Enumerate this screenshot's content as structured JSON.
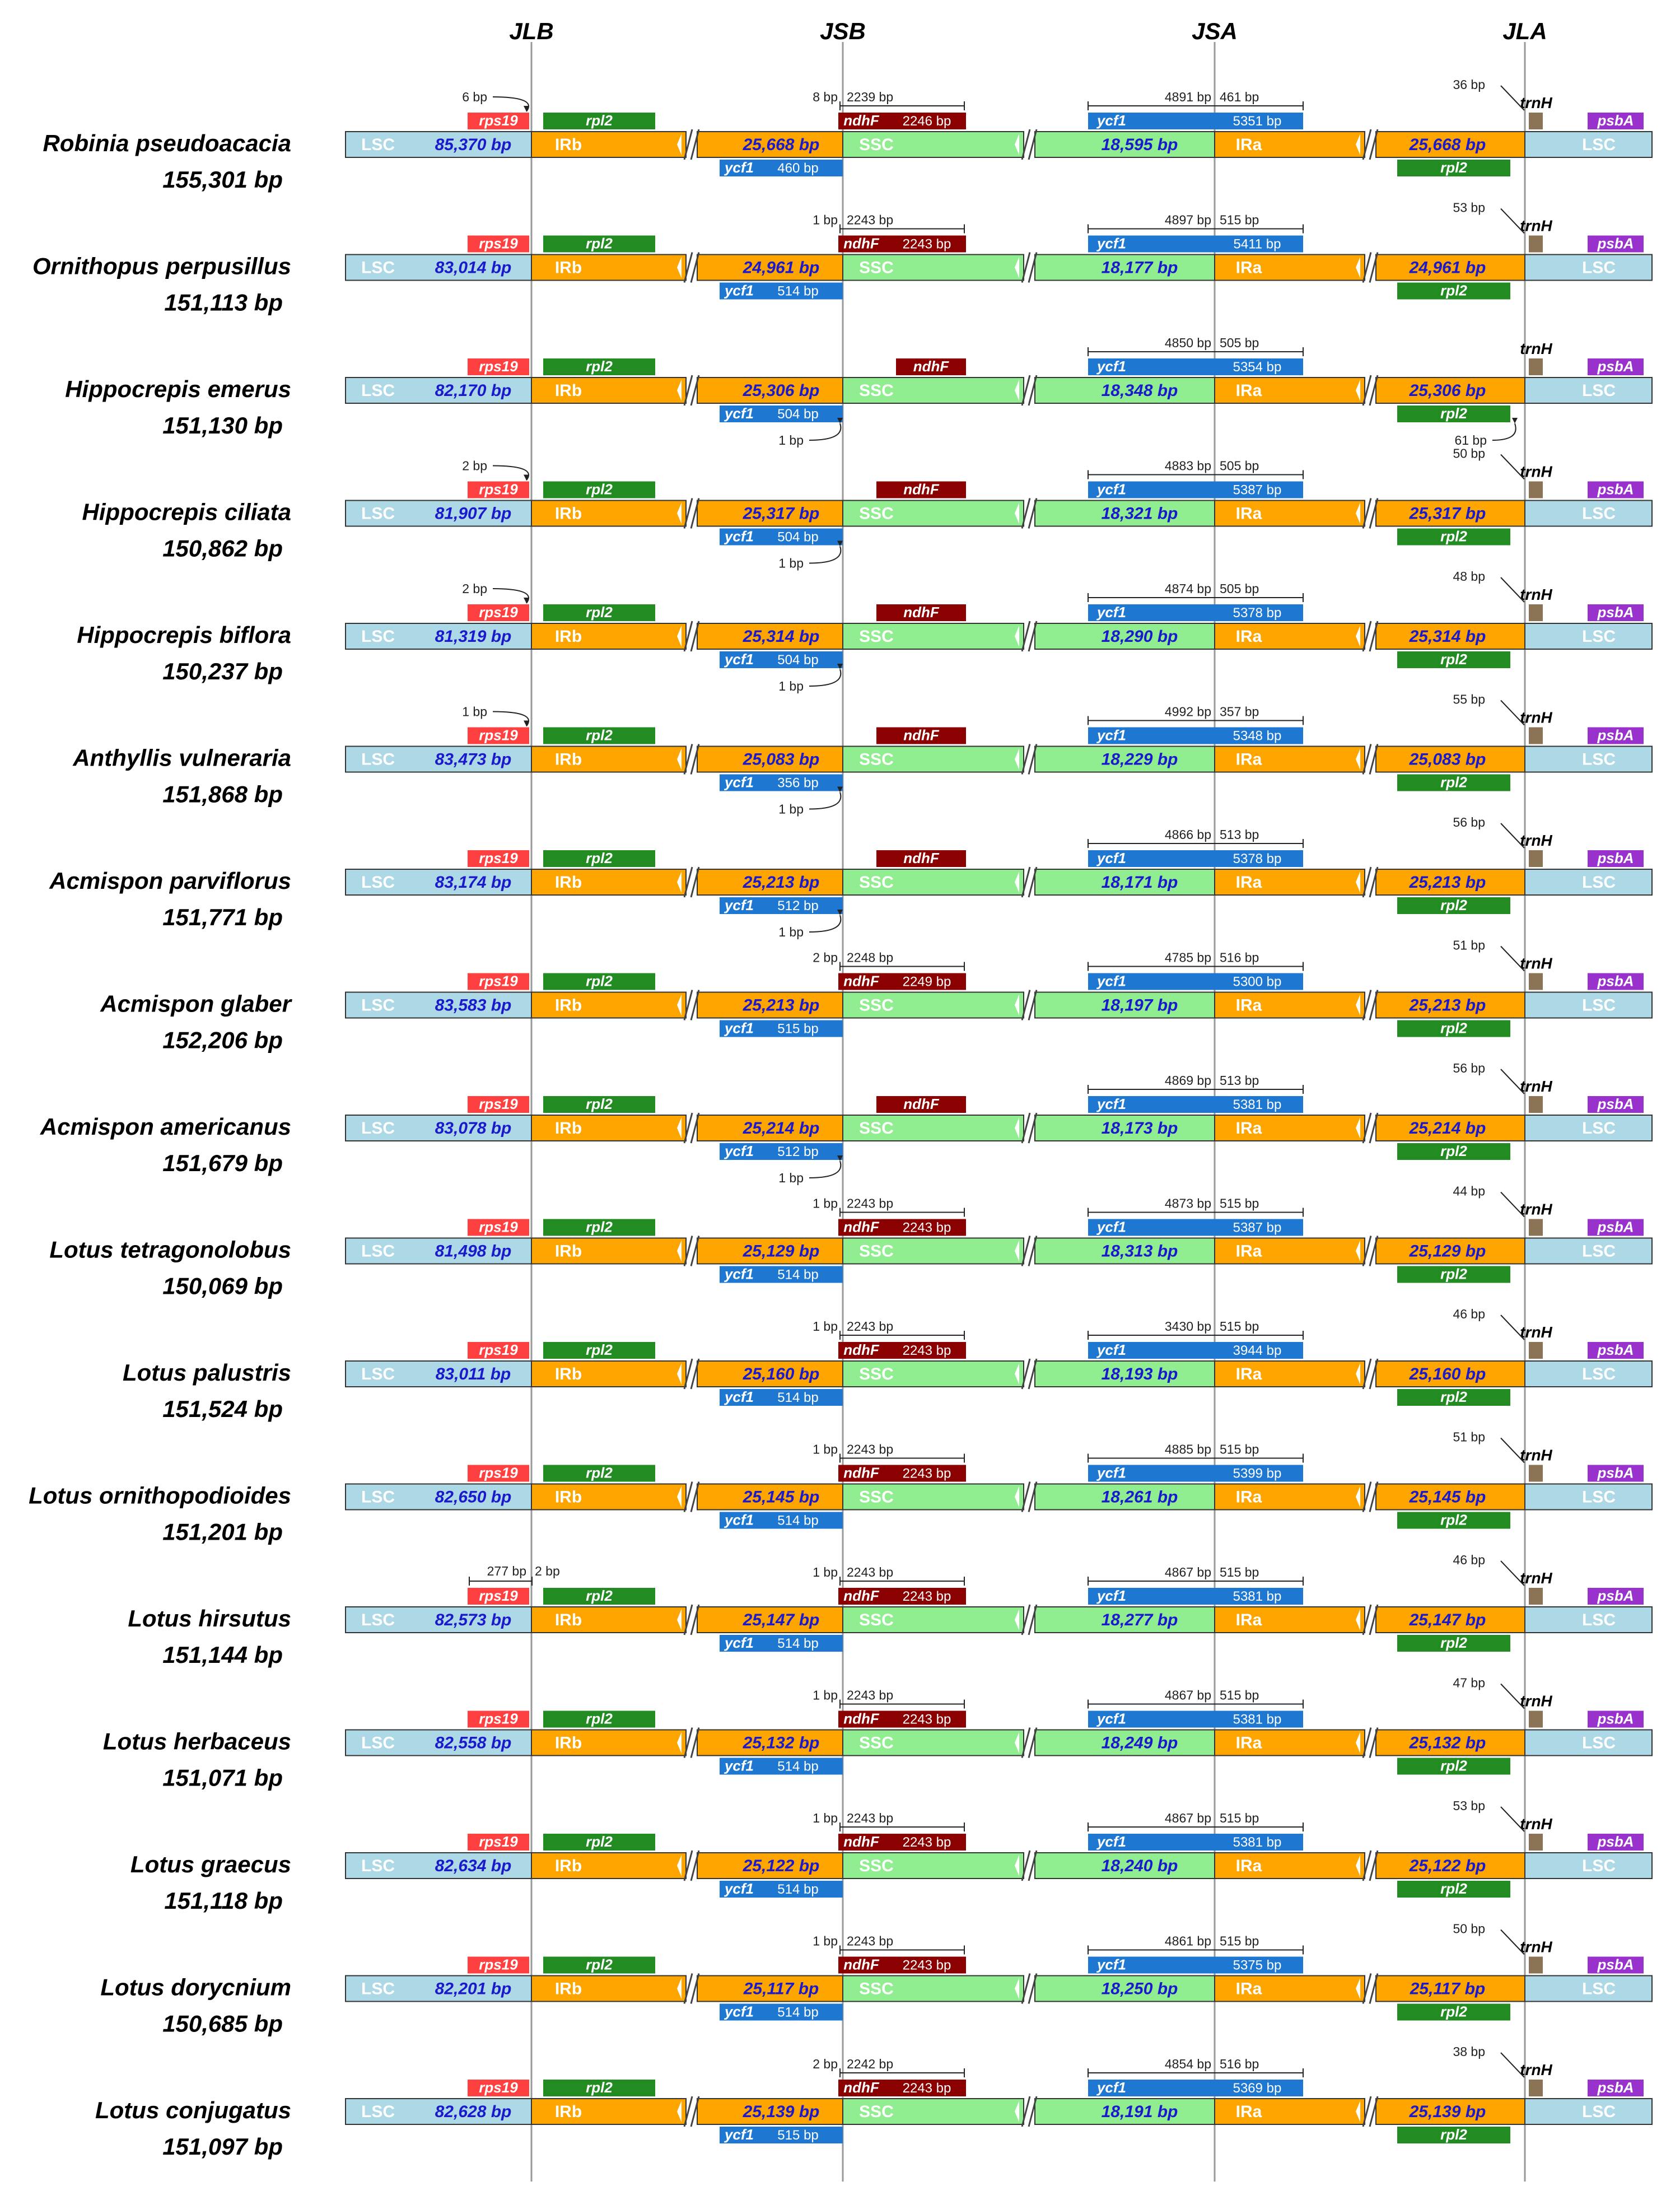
{
  "junctions": [
    "JLB",
    "JSB",
    "JSA",
    "JLA"
  ],
  "region_labels": {
    "lsc": "LSC",
    "irb": "IRb",
    "ssc": "SSC",
    "ira": "IRa"
  },
  "gene_labels": {
    "rps19": "rps19",
    "rpl2": "rpl2",
    "ndhF": "ndhF",
    "ycf1": "ycf1",
    "trnH": "trnH",
    "psbA": "psbA"
  },
  "colors": {
    "lsc": "#add8e6",
    "ir": "#ffa500",
    "ssc": "#90ee90",
    "rps19": "#ff4040",
    "rpl2": "#228b22",
    "ndhF": "#8b0000",
    "ycf1": "#1e78d2",
    "trnH": "#8b7355",
    "psbA": "#9932cc",
    "size_text": "#1a1acc",
    "junction_line": "#999999"
  },
  "species": [
    {
      "name": "Robinia pseudoacacia",
      "total": "155,301 bp",
      "lsc": "85,370 bp",
      "ir": "25,668 bp",
      "ssc": "18,595 bp",
      "rps19_ann": "6 bp",
      "rps19_span": "",
      "ndhF_left": "8 bp",
      "ndhF_right": "2239 bp",
      "ndhF_len": "2246 bp",
      "ndhF_mode": "cross",
      "ycf1_left": "4891 bp",
      "ycf1_right": "461 bp",
      "ycf1_len": "5351 bp",
      "ycf1_irb_len": "460 bp",
      "jsb_gap": "",
      "trnH_ann": "36 bp",
      "jla_gap": ""
    },
    {
      "name": "Ornithopus perpusillus",
      "total": "151,113 bp",
      "lsc": "83,014 bp",
      "ir": "24,961 bp",
      "ssc": "18,177 bp",
      "rps19_ann": "",
      "rps19_span": "",
      "ndhF_left": "1 bp",
      "ndhF_right": "2243 bp",
      "ndhF_len": "2243 bp",
      "ndhF_mode": "cross",
      "ycf1_left": "4897 bp",
      "ycf1_right": "515 bp",
      "ycf1_len": "5411 bp",
      "ycf1_irb_len": "514 bp",
      "jsb_gap": "",
      "trnH_ann": "53 bp",
      "jla_gap": ""
    },
    {
      "name": "Hippocrepis emerus",
      "total": "151,130 bp",
      "lsc": "82,170 bp",
      "ir": "25,306 bp",
      "ssc": "18,348 bp",
      "rps19_ann": "",
      "rps19_span": "",
      "ndhF_left": "",
      "ndhF_right": "",
      "ndhF_len": "",
      "ndhF_mode": "ssc",
      "ycf1_left": "4850 bp",
      "ycf1_right": "505 bp",
      "ycf1_len": "5354 bp",
      "ycf1_irb_len": "504 bp",
      "jsb_gap": "1 bp",
      "trnH_ann": "",
      "jla_gap": "61 bp"
    },
    {
      "name": "Hippocrepis ciliata",
      "total": "150,862 bp",
      "lsc": "81,907 bp",
      "ir": "25,317 bp",
      "ssc": "18,321 bp",
      "rps19_ann": "2 bp",
      "rps19_span": "",
      "ndhF_left": "",
      "ndhF_right": "",
      "ndhF_len": "",
      "ndhF_mode": "ssc",
      "ycf1_left": "4883 bp",
      "ycf1_right": "505 bp",
      "ycf1_len": "5387 bp",
      "ycf1_irb_len": "504 bp",
      "jsb_gap": "1 bp",
      "trnH_ann": "50 bp",
      "jla_gap": ""
    },
    {
      "name": "Hippocrepis biflora",
      "total": "150,237 bp",
      "lsc": "81,319 bp",
      "ir": "25,314 bp",
      "ssc": "18,290 bp",
      "rps19_ann": "2 bp",
      "rps19_span": "",
      "ndhF_left": "",
      "ndhF_right": "",
      "ndhF_len": "",
      "ndhF_mode": "ssc",
      "ycf1_left": "4874 bp",
      "ycf1_right": "505 bp",
      "ycf1_len": "5378 bp",
      "ycf1_irb_len": "504 bp",
      "jsb_gap": "1 bp",
      "trnH_ann": "48 bp",
      "jla_gap": ""
    },
    {
      "name": "Anthyllis vulneraria",
      "total": "151,868 bp",
      "lsc": "83,473 bp",
      "ir": "25,083 bp",
      "ssc": "18,229 bp",
      "rps19_ann": "1 bp",
      "rps19_span": "",
      "ndhF_left": "",
      "ndhF_right": "",
      "ndhF_len": "",
      "ndhF_mode": "ssc",
      "ycf1_left": "4992 bp",
      "ycf1_right": "357 bp",
      "ycf1_len": "5348 bp",
      "ycf1_irb_len": "356 bp",
      "jsb_gap": "1 bp",
      "trnH_ann": "55 bp",
      "jla_gap": ""
    },
    {
      "name": "Acmispon parviflorus",
      "total": "151,771 bp",
      "lsc": "83,174 bp",
      "ir": "25,213 bp",
      "ssc": "18,171 bp",
      "rps19_ann": "",
      "rps19_span": "",
      "ndhF_left": "",
      "ndhF_right": "",
      "ndhF_len": "",
      "ndhF_mode": "ssc",
      "ycf1_left": "4866 bp",
      "ycf1_right": "513 bp",
      "ycf1_len": "5378 bp",
      "ycf1_irb_len": "512 bp",
      "jsb_gap": "1 bp",
      "trnH_ann": "56 bp",
      "jla_gap": ""
    },
    {
      "name": "Acmispon glaber",
      "total": "152,206 bp",
      "lsc": "83,583 bp",
      "ir": "25,213 bp",
      "ssc": "18,197 bp",
      "rps19_ann": "",
      "rps19_span": "",
      "ndhF_left": "2 bp",
      "ndhF_right": "2248 bp",
      "ndhF_len": "2249 bp",
      "ndhF_mode": "cross",
      "ycf1_left": "4785 bp",
      "ycf1_right": "516 bp",
      "ycf1_len": "5300 bp",
      "ycf1_irb_len": "515 bp",
      "jsb_gap": "",
      "trnH_ann": "51 bp",
      "jla_gap": ""
    },
    {
      "name": "Acmispon americanus",
      "total": "151,679 bp",
      "lsc": "83,078 bp",
      "ir": "25,214 bp",
      "ssc": "18,173 bp",
      "rps19_ann": "",
      "rps19_span": "",
      "ndhF_left": "",
      "ndhF_right": "",
      "ndhF_len": "",
      "ndhF_mode": "ssc",
      "ycf1_left": "4869 bp",
      "ycf1_right": "513 bp",
      "ycf1_len": "5381 bp",
      "ycf1_irb_len": "512 bp",
      "jsb_gap": "1 bp",
      "trnH_ann": "56 bp",
      "jla_gap": ""
    },
    {
      "name": "Lotus tetragonolobus",
      "total": "150,069 bp",
      "lsc": "81,498 bp",
      "ir": "25,129 bp",
      "ssc": "18,313 bp",
      "rps19_ann": "",
      "rps19_span": "",
      "ndhF_left": "1 bp",
      "ndhF_right": "2243 bp",
      "ndhF_len": "2243 bp",
      "ndhF_mode": "cross",
      "ycf1_left": "4873 bp",
      "ycf1_right": "515 bp",
      "ycf1_len": "5387 bp",
      "ycf1_irb_len": "514 bp",
      "jsb_gap": "",
      "trnH_ann": "44 bp",
      "jla_gap": ""
    },
    {
      "name": "Lotus palustris",
      "total": "151,524 bp",
      "lsc": "83,011 bp",
      "ir": "25,160 bp",
      "ssc": "18,193 bp",
      "rps19_ann": "",
      "rps19_span": "",
      "ndhF_left": "1 bp",
      "ndhF_right": "2243 bp",
      "ndhF_len": "2243 bp",
      "ndhF_mode": "cross",
      "ycf1_left": "3430 bp",
      "ycf1_right": "515 bp",
      "ycf1_len": "3944 bp",
      "ycf1_irb_len": "514 bp",
      "jsb_gap": "",
      "trnH_ann": "46 bp",
      "jla_gap": ""
    },
    {
      "name": "Lotus ornithopodioides",
      "total": "151,201 bp",
      "lsc": "82,650 bp",
      "ir": "25,145 bp",
      "ssc": "18,261 bp",
      "rps19_ann": "",
      "rps19_span": "",
      "ndhF_left": "1 bp",
      "ndhF_right": "2243 bp",
      "ndhF_len": "2243 bp",
      "ndhF_mode": "cross",
      "ycf1_left": "4885 bp",
      "ycf1_right": "515 bp",
      "ycf1_len": "5399 bp",
      "ycf1_irb_len": "514 bp",
      "jsb_gap": "",
      "trnH_ann": "51 bp",
      "jla_gap": ""
    },
    {
      "name": "Lotus hirsutus",
      "total": "151,144 bp",
      "lsc": "82,573 bp",
      "ir": "25,147 bp",
      "ssc": "18,277 bp",
      "rps19_ann": "",
      "rps19_span": [
        "277 bp",
        "2 bp"
      ],
      "ndhF_left": "1 bp",
      "ndhF_right": "2243 bp",
      "ndhF_len": "2243 bp",
      "ndhF_mode": "cross",
      "ycf1_left": "4867 bp",
      "ycf1_right": "515 bp",
      "ycf1_len": "5381 bp",
      "ycf1_irb_len": "514 bp",
      "jsb_gap": "",
      "trnH_ann": "46 bp",
      "jla_gap": ""
    },
    {
      "name": "Lotus herbaceus",
      "total": "151,071 bp",
      "lsc": "82,558 bp",
      "ir": "25,132 bp",
      "ssc": "18,249 bp",
      "rps19_ann": "",
      "rps19_span": "",
      "ndhF_left": "1 bp",
      "ndhF_right": "2243 bp",
      "ndhF_len": "2243 bp",
      "ndhF_mode": "cross",
      "ycf1_left": "4867 bp",
      "ycf1_right": "515 bp",
      "ycf1_len": "5381 bp",
      "ycf1_irb_len": "514 bp",
      "jsb_gap": "",
      "trnH_ann": "47 bp",
      "jla_gap": ""
    },
    {
      "name": "Lotus graecus",
      "total": "151,118 bp",
      "lsc": "82,634 bp",
      "ir": "25,122 bp",
      "ssc": "18,240 bp",
      "rps19_ann": "",
      "rps19_span": "",
      "ndhF_left": "1 bp",
      "ndhF_right": "2243 bp",
      "ndhF_len": "2243 bp",
      "ndhF_mode": "cross",
      "ycf1_left": "4867 bp",
      "ycf1_right": "515 bp",
      "ycf1_len": "5381 bp",
      "ycf1_irb_len": "514 bp",
      "jsb_gap": "",
      "trnH_ann": "53 bp",
      "jla_gap": ""
    },
    {
      "name": "Lotus dorycnium",
      "total": "150,685 bp",
      "lsc": "82,201 bp",
      "ir": "25,117 bp",
      "ssc": "18,250 bp",
      "rps19_ann": "",
      "rps19_span": "",
      "ndhF_left": "1 bp",
      "ndhF_right": "2243 bp",
      "ndhF_len": "2243 bp",
      "ndhF_mode": "cross",
      "ycf1_left": "4861 bp",
      "ycf1_right": "515 bp",
      "ycf1_len": "5375 bp",
      "ycf1_irb_len": "514 bp",
      "jsb_gap": "",
      "trnH_ann": "50 bp",
      "jla_gap": ""
    },
    {
      "name": "Lotus conjugatus",
      "total": "151,097 bp",
      "lsc": "82,628 bp",
      "ir": "25,139 bp",
      "ssc": "18,191 bp",
      "rps19_ann": "",
      "rps19_span": "",
      "ndhF_left": "2 bp",
      "ndhF_right": "2242 bp",
      "ndhF_len": "2243 bp",
      "ndhF_mode": "cross",
      "ycf1_left": "4854 bp",
      "ycf1_right": "516 bp",
      "ycf1_len": "5369 bp",
      "ycf1_irb_len": "515 bp",
      "jsb_gap": "",
      "trnH_ann": "38 bp",
      "jla_gap": ""
    }
  ]
}
